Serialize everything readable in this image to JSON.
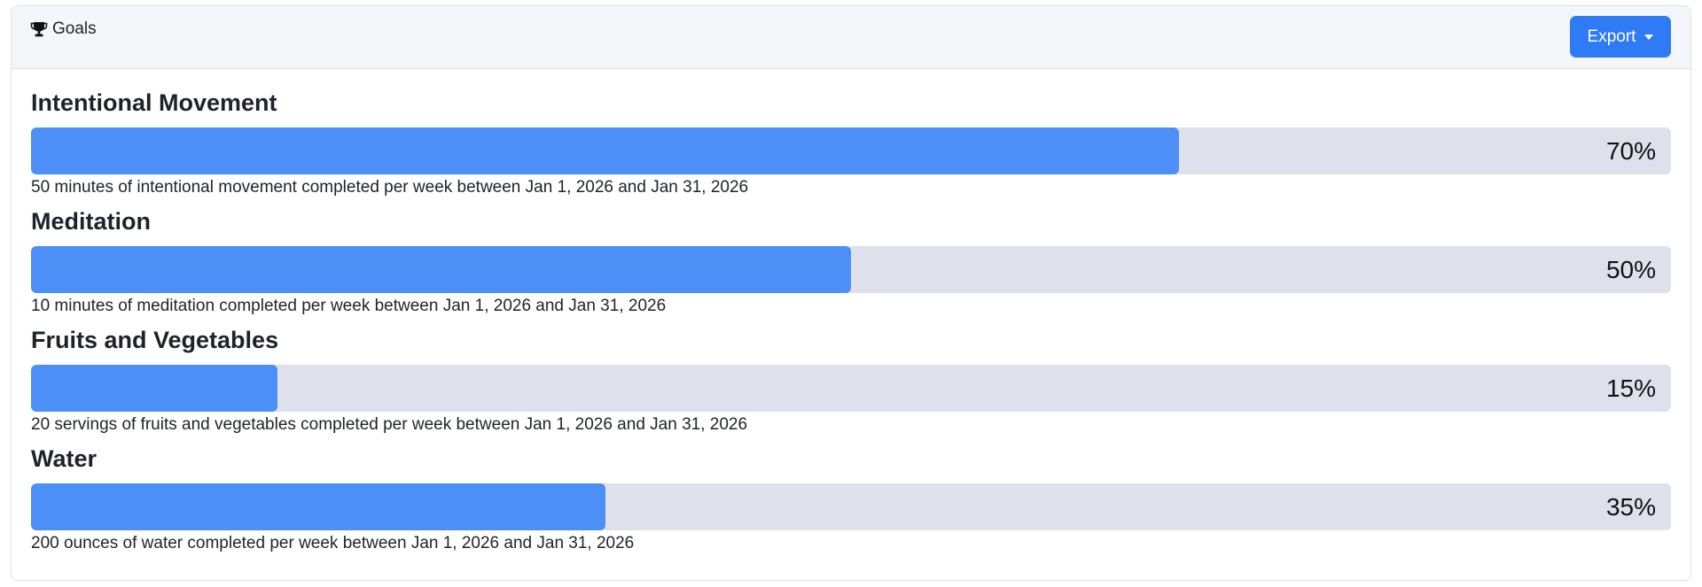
{
  "header": {
    "title": "Goals",
    "title_icon": "trophy-icon",
    "export_label": "Export",
    "export_icon": "caret-down-icon"
  },
  "colors": {
    "accent": "#2f7bf5",
    "progress_fill": "#4b8ff7",
    "progress_track": "#dee1ec"
  },
  "goals": [
    {
      "title": "Intentional Movement",
      "percent": 70,
      "percent_label": "70%",
      "description": "50 minutes of intentional movement completed per week between Jan 1, 2026 and Jan 31, 2026"
    },
    {
      "title": "Meditation",
      "percent": 50,
      "percent_label": "50%",
      "description": "10 minutes of meditation completed per week between Jan 1, 2026 and Jan 31, 2026"
    },
    {
      "title": "Fruits and Vegetables",
      "percent": 15,
      "percent_label": "15%",
      "description": "20 servings of fruits and vegetables completed per week between Jan 1, 2026 and Jan 31, 2026"
    },
    {
      "title": "Water",
      "percent": 35,
      "percent_label": "35%",
      "description": "200 ounces of water completed per week between Jan 1, 2026 and Jan 31, 2026"
    }
  ]
}
